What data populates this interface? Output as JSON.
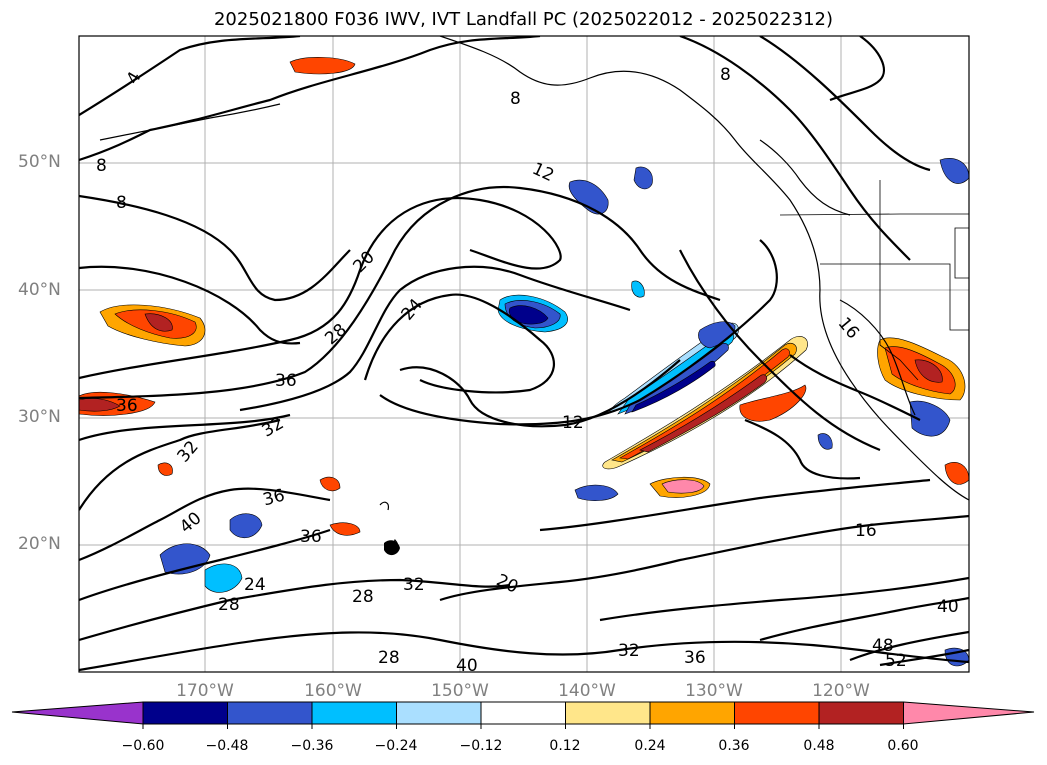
{
  "title": "2025021800 F036 IWV, IVT Landfall PC (2025022012 - 2025022312)",
  "lat_labels": [
    "50°N",
    "40°N",
    "30°N",
    "20°N"
  ],
  "lon_labels": [
    "170°W",
    "160°W",
    "150°W",
    "140°W",
    "130°W",
    "120°W"
  ],
  "colorbar": {
    "ticks": [
      "−0.60",
      "−0.48",
      "−0.36",
      "−0.24",
      "−0.12",
      "0.12",
      "0.24",
      "0.36",
      "0.48",
      "0.60"
    ],
    "colors": [
      "#9933cc",
      "#00008b",
      "#3355cc",
      "#00bfff",
      "#aadfff",
      "#ffffff",
      "#ffe68a",
      "#ffa500",
      "#ff4500",
      "#b22222",
      "#ff88aa"
    ]
  },
  "contour_labels": [
    "4",
    "8",
    "8",
    "8",
    "8",
    "12",
    "12",
    "16",
    "16",
    "20",
    "20",
    "24",
    "24",
    "28",
    "28",
    "28",
    "28",
    "32",
    "32",
    "32",
    "32",
    "36",
    "36",
    "36",
    "36",
    "36",
    "40",
    "40",
    "40",
    "48",
    "52"
  ],
  "map": {
    "lon_range": [
      -180,
      -110
    ],
    "lat_range": [
      10,
      60
    ],
    "projection": "cylindrical"
  }
}
